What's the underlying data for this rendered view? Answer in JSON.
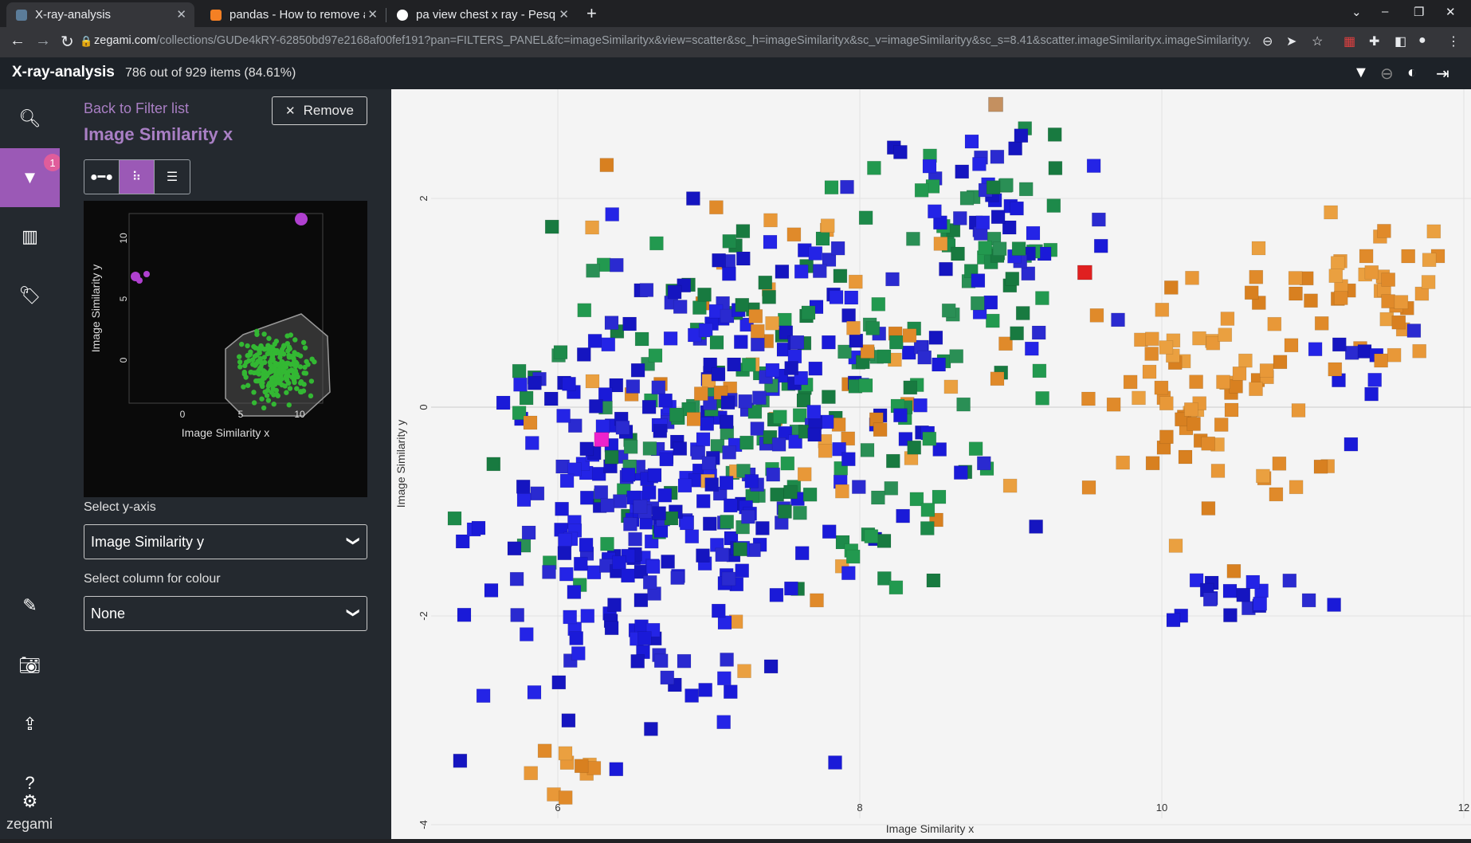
{
  "browser": {
    "tabs": [
      {
        "title": "X-ray-analysis",
        "active": true
      },
      {
        "title": "pandas - How to remove a",
        "active": false
      },
      {
        "title": "pa view chest x ray - Pesq",
        "active": false
      }
    ],
    "url_domain": "zegami.com",
    "url_path": "/collections/GUDe4kRY-62850bd97e2168af00fef191?pan=FILTERS_PANEL&fc=imageSimilarityx&view=scatter&sc_h=imageSimilarityx&sc_v=imageSimilarityy&sc_s=8.41&scatter.imageSimilarityx.imageSimilarityy..."
  },
  "app": {
    "title": "X-ray-analysis",
    "count_text": "786 out of 929 items (84.61%)",
    "brand": "zegami",
    "filter_badge": "1"
  },
  "panel": {
    "back_link": "Back to Filter list",
    "title": "Image Similarity x",
    "remove_label": "Remove",
    "mini_chart": {
      "xlabel": "Image Similarity x",
      "ylabel": "Image Similarity y",
      "xticks": [
        "0",
        "5",
        "10"
      ],
      "yticks": [
        "0",
        "5",
        "10"
      ]
    },
    "y_axis_label": "Select y-axis",
    "y_axis_value": "Image Similarity y",
    "colour_label": "Select column for colour",
    "colour_value": "None"
  },
  "chart_data": {
    "type": "scatter",
    "xlabel": "Image Similarity x",
    "ylabel": "Image Similarity y",
    "xlim": [
      5.2,
      12
    ],
    "ylim": [
      -4,
      2.95
    ],
    "xticks": [
      6,
      8,
      10,
      12
    ],
    "yticks": [
      -4,
      -2,
      0,
      2
    ],
    "grid": true,
    "marker": "square image thumbnails",
    "colors": {
      "blue": "#1a1ad8",
      "green": "#1d8a4a",
      "orange": "#e08a2a",
      "magenta": "#ee22cc",
      "red": "#e02020",
      "tan": "#c49060"
    },
    "highlight_points": [
      {
        "x": 6.29,
        "y": -0.31,
        "color": "magenta"
      },
      {
        "x": 9.49,
        "y": 1.29,
        "color": "red"
      },
      {
        "x": 8.9,
        "y": 2.9,
        "color": "tan"
      }
    ],
    "clusters": [
      {
        "color": "blue",
        "cx": 6.6,
        "cy": -1.1,
        "sx": 0.55,
        "sy": 0.9,
        "n": 230
      },
      {
        "color": "blue",
        "cx": 7.5,
        "cy": 0.2,
        "sx": 0.7,
        "sy": 0.8,
        "n": 110
      },
      {
        "color": "blue",
        "cx": 8.9,
        "cy": 1.8,
        "sx": 0.4,
        "sy": 0.6,
        "n": 40
      },
      {
        "color": "blue",
        "cx": 10.5,
        "cy": -1.8,
        "sx": 0.3,
        "sy": 0.15,
        "n": 18
      },
      {
        "color": "blue",
        "cx": 11.3,
        "cy": 0.5,
        "sx": 0.25,
        "sy": 0.3,
        "n": 10
      },
      {
        "color": "green",
        "cx": 7.3,
        "cy": 0.0,
        "sx": 0.8,
        "sy": 0.9,
        "n": 160
      },
      {
        "color": "green",
        "cx": 8.8,
        "cy": 1.6,
        "sx": 0.35,
        "sy": 0.5,
        "n": 40
      },
      {
        "color": "orange",
        "cx": 10.3,
        "cy": 0.0,
        "sx": 0.35,
        "sy": 0.6,
        "n": 70
      },
      {
        "color": "orange",
        "cx": 11.4,
        "cy": 1.1,
        "sx": 0.4,
        "sy": 0.35,
        "n": 50
      },
      {
        "color": "orange",
        "cx": 7.6,
        "cy": 0.3,
        "sx": 0.8,
        "sy": 0.9,
        "n": 55
      },
      {
        "color": "orange",
        "cx": 6.15,
        "cy": -3.5,
        "sx": 0.2,
        "sy": 0.15,
        "n": 10
      }
    ]
  }
}
